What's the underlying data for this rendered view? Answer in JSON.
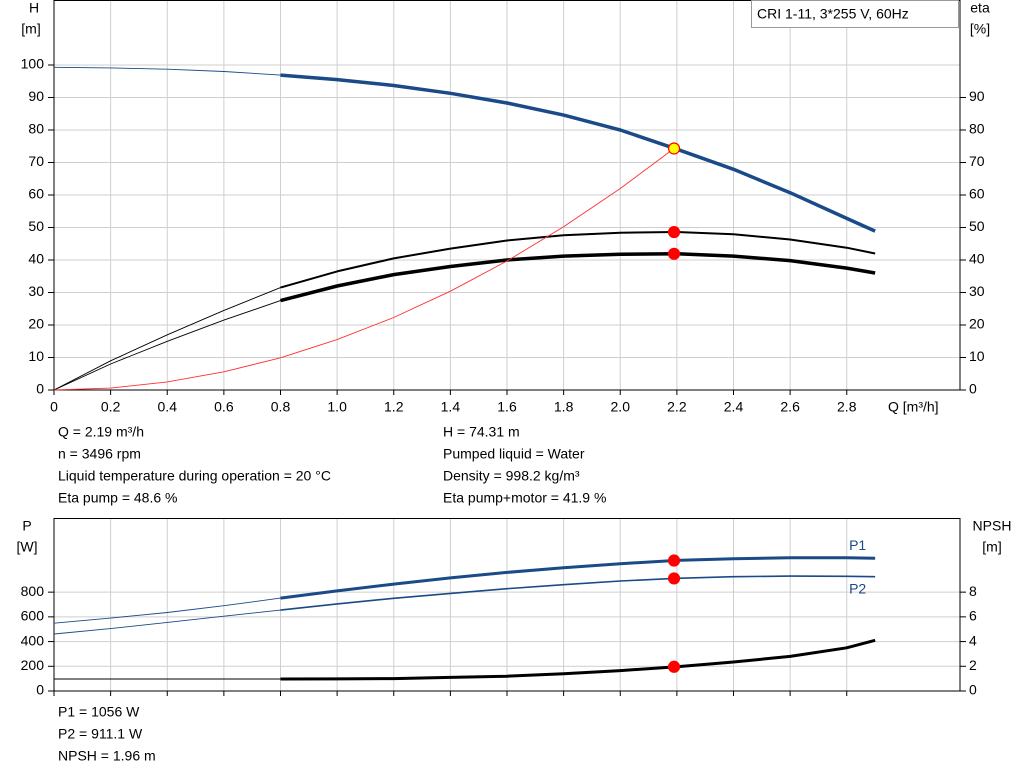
{
  "chart_data": [
    {
      "type": "line",
      "title": "CRI 1-11, 3*255 V, 60Hz",
      "ylabel": [
        "H",
        "[m]"
      ],
      "y2label": [
        "eta",
        "[%]"
      ],
      "xlabel": "Q [m³/h]",
      "xlim": [
        0,
        3.2
      ],
      "xticks": [
        0,
        {
          "value": 0.2,
          "label": "0.2"
        },
        {
          "value": 0.4,
          "label": "0.4"
        },
        {
          "value": 0.6,
          "label": "0.6"
        },
        {
          "value": 0.8,
          "label": "0.8"
        },
        {
          "value": 1,
          "label": "1.0"
        },
        {
          "value": 1.2,
          "label": "1.2"
        },
        {
          "value": 1.4,
          "label": "1.4"
        },
        {
          "value": 1.6,
          "label": "1.6"
        },
        {
          "value": 1.8,
          "label": "1.8"
        },
        {
          "value": 2,
          "label": "2.0"
        },
        {
          "value": 2.2,
          "label": "2.2"
        },
        {
          "value": 2.4,
          "label": "2.4"
        },
        {
          "value": 2.6,
          "label": "2.6"
        },
        {
          "value": 2.8,
          "label": "2.8"
        }
      ],
      "xtick_labels": true,
      "ylim": [
        0,
        120
      ],
      "yticks": [
        0,
        10,
        20,
        30,
        40,
        50,
        60,
        70,
        80,
        90,
        100
      ],
      "y2lim": [
        0,
        120
      ],
      "y2ticks": [
        0,
        10,
        20,
        30,
        40,
        50,
        60,
        70,
        80,
        90
      ],
      "grid": true,
      "bold_from": 0.8,
      "series": [
        {
          "color": "#1a4a87",
          "width": 3.5,
          "bold": true,
          "x": [
            0,
            0.2,
            0.4,
            0.6,
            0.8,
            1,
            1.2,
            1.4,
            1.6,
            1.8,
            2,
            2.2,
            2.4,
            2.6,
            2.8,
            2.9
          ],
          "values": [
            99.3,
            99.1,
            98.7,
            98.0,
            96.9,
            95.5,
            93.7,
            91.3,
            88.3,
            84.6,
            80.0,
            74.1,
            67.9,
            60.7,
            52.8,
            48.9
          ]
        },
        {
          "color": "#000000",
          "width": 2,
          "bold": true,
          "axis": "y2",
          "x": [
            0,
            0.2,
            0.4,
            0.6,
            0.8,
            1,
            1.2,
            1.4,
            1.6,
            1.8,
            2,
            2.2,
            2.4,
            2.6,
            2.8,
            2.9
          ],
          "values": [
            0,
            9,
            17,
            24.5,
            31.5,
            36.5,
            40.5,
            43.5,
            46,
            47.6,
            48.4,
            48.6,
            47.9,
            46.3,
            43.8,
            42
          ]
        },
        {
          "color": "#000000",
          "width": 3.5,
          "bold": true,
          "axis": "y2",
          "x": [
            0,
            0.2,
            0.4,
            0.6,
            0.8,
            1,
            1.2,
            1.4,
            1.6,
            1.8,
            2,
            2.2,
            2.4,
            2.6,
            2.8,
            2.9
          ],
          "values": [
            0,
            8,
            15,
            21.5,
            27.5,
            32,
            35.5,
            38,
            40,
            41.2,
            41.8,
            41.9,
            41.2,
            39.8,
            37.5,
            36
          ]
        },
        {
          "color": "#ff3030",
          "width": 0.8,
          "bold": false,
          "x": [
            0,
            0.2,
            0.4,
            0.6,
            0.8,
            1,
            1.2,
            1.4,
            1.6,
            1.8,
            2,
            2.19
          ],
          "values": [
            0,
            0.6,
            2.5,
            5.6,
            9.9,
            15.5,
            22.3,
            30.4,
            39.7,
            50.2,
            62.0,
            74.31
          ]
        }
      ],
      "points": [
        {
          "x": 2.19,
          "y": 74.31,
          "color": "#ffff00"
        },
        {
          "x": 2.19,
          "y": 48.6,
          "color": "#ff0000",
          "axis": "y2"
        },
        {
          "x": 2.19,
          "y": 41.9,
          "color": "#ff0000",
          "axis": "y2"
        }
      ],
      "annotations": [
        [
          "Q = 2.19 m³/h",
          "n = 3496 rpm",
          "Liquid temperature during operation = 20 °C",
          "Eta pump = 48.6 %"
        ],
        [
          "H = 74.31 m",
          "Pumped liquid = Water",
          "Density = 998.2 kg/m³",
          "Eta pump+motor = 41.9 %"
        ]
      ]
    },
    {
      "type": "line",
      "ylabel": [
        "P",
        "[W]"
      ],
      "y2label": [
        "NPSH",
        "[m]"
      ],
      "xlim": [
        0,
        3.2
      ],
      "xticks": [
        0,
        0.2,
        0.4,
        0.6,
        0.8,
        1,
        1.2,
        1.4,
        1.6,
        1.8,
        2,
        2.2,
        2.4,
        2.6,
        2.8
      ],
      "xtick_labels": false,
      "ylim": [
        0,
        1400
      ],
      "yticks": [
        0,
        200,
        400,
        600,
        800
      ],
      "y2lim": [
        0,
        14
      ],
      "y2ticks": [
        0,
        2,
        4,
        6,
        8
      ],
      "grid": true,
      "bold_from": 0.8,
      "series": [
        {
          "name": "P1",
          "color": "#1a4a87",
          "width": 3,
          "bold": true,
          "x": [
            0,
            0.2,
            0.4,
            0.6,
            0.8,
            1,
            1.2,
            1.4,
            1.6,
            1.8,
            2,
            2.2,
            2.4,
            2.6,
            2.8,
            2.9
          ],
          "values": [
            549,
            590,
            635,
            690,
            752,
            810,
            865,
            915,
            960,
            998,
            1030,
            1057,
            1070,
            1078,
            1078,
            1075
          ]
        },
        {
          "name": "P2",
          "color": "#1a4a87",
          "width": 1.6,
          "bold": true,
          "x": [
            0,
            0.2,
            0.4,
            0.6,
            0.8,
            1,
            1.2,
            1.4,
            1.6,
            1.8,
            2,
            2.2,
            2.4,
            2.6,
            2.8,
            2.9
          ],
          "values": [
            461,
            505,
            555,
            605,
            655,
            705,
            750,
            790,
            828,
            860,
            890,
            912,
            925,
            930,
            928,
            925
          ]
        },
        {
          "color": "#000000",
          "width": 3,
          "bold": true,
          "axis": "y2",
          "x": [
            0,
            0.2,
            0.4,
            0.6,
            0.8,
            1,
            1.2,
            1.4,
            1.6,
            1.8,
            2,
            2.2,
            2.4,
            2.6,
            2.8,
            2.9
          ],
          "values": [
            0.97,
            0.97,
            0.97,
            0.97,
            0.97,
            0.98,
            1.0,
            1.1,
            1.2,
            1.4,
            1.65,
            1.97,
            2.35,
            2.8,
            3.5,
            4.1
          ]
        }
      ],
      "points": [
        {
          "x": 2.19,
          "y": 1056,
          "color": "#ff0000"
        },
        {
          "x": 2.19,
          "y": 911.1,
          "color": "#ff0000"
        },
        {
          "x": 2.19,
          "y": 1.96,
          "color": "#ff0000",
          "axis": "y2"
        }
      ],
      "annotations": [
        [
          "P1 = 1056 W",
          "P2 = 911.1 W",
          "NPSH = 1.96 m"
        ]
      ]
    }
  ]
}
